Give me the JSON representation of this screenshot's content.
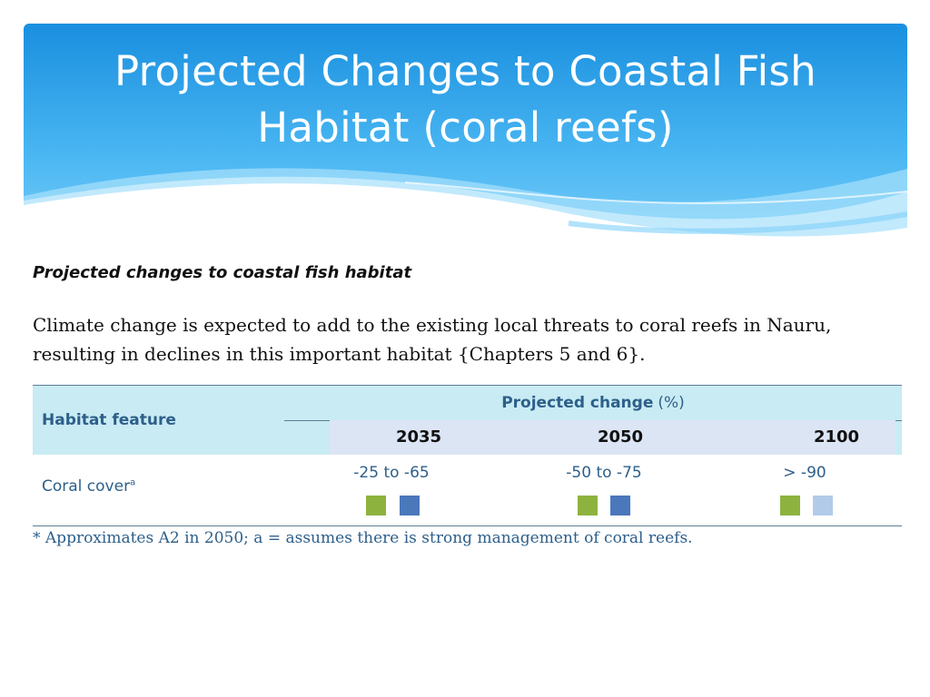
{
  "slide": {
    "title_line1": "Projected Changes to Coastal Fish",
    "title_line2": "Habitat (coral reefs)"
  },
  "section": {
    "heading": "Projected changes to coastal fish habitat",
    "intro_line1": "Climate change is expected to add to the existing local threats to coral reefs in Nauru,",
    "intro_line2": "resulting in declines in this important habitat {Chapters 5 and 6}."
  },
  "table": {
    "feature_header": "Habitat feature",
    "projected_header": "Projected change",
    "projected_unit": "(%)",
    "years": [
      "2035",
      "2050",
      "2100"
    ],
    "rows": [
      {
        "feature": "Coral cover",
        "feature_superscript": "a",
        "values": [
          "-25 to -65",
          "-50 to -75",
          "> -90"
        ],
        "indicators": [
          [
            "#8db33e",
            "#4a78bb"
          ],
          [
            "#8db33e",
            "#4a78bb"
          ],
          [
            "#8db33e",
            "#b2cbe9"
          ]
        ]
      }
    ]
  },
  "footnote": "* Approximates A2 in 2050; a = assumes there is strong management of coral reefs.",
  "colors": {
    "header_blue": "#2d9be0",
    "text_blue": "#2d5f8a",
    "header_cell": "#c9ebf3",
    "year_cell": "#dbe5f4"
  }
}
